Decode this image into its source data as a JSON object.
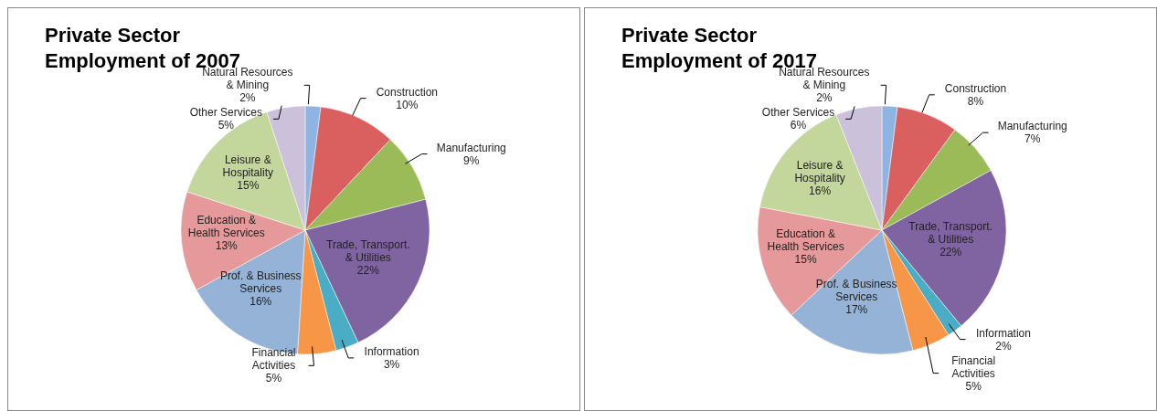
{
  "chart_data": [
    {
      "type": "pie",
      "title": "Private Sector Employment of 2007",
      "categories": [
        "Natural Resources & Mining",
        "Construction",
        "Manufacturing",
        "Trade, Transport. & Utilities",
        "Information",
        "Financial Activities",
        "Prof. & Business Services",
        "Education & Health Services",
        "Leisure & Hospitality",
        "Other Services"
      ],
      "values": [
        2,
        10,
        9,
        22,
        3,
        5,
        16,
        13,
        15,
        5
      ],
      "value_labels": [
        "2%",
        "10%",
        "9%",
        "22%",
        "3%",
        "5%",
        "16%",
        "13%",
        "15%",
        "5%"
      ],
      "colors": [
        "#8eb4e3",
        "#d9605e",
        "#9bbb59",
        "#8064a2",
        "#4bacc6",
        "#f79646",
        "#95b3d7",
        "#e6999a",
        "#c3d69b",
        "#ccc1da"
      ],
      "legend": false
    },
    {
      "type": "pie",
      "title": "Private Sector Employment of 2017",
      "categories": [
        "Natural Resources & Mining",
        "Construction",
        "Manufacturing",
        "Trade, Transport. & Utilities",
        "Information",
        "Financial Activities",
        "Prof. & Business Services",
        "Education & Health Services",
        "Leisure & Hospitality",
        "Other Services"
      ],
      "values": [
        2,
        8,
        7,
        22,
        2,
        5,
        17,
        15,
        16,
        6
      ],
      "value_labels": [
        "2%",
        "8%",
        "7%",
        "22%",
        "2%",
        "5%",
        "17%",
        "15%",
        "16%",
        "6%"
      ],
      "colors": [
        "#8eb4e3",
        "#d9605e",
        "#9bbb59",
        "#8064a2",
        "#4bacc6",
        "#f79646",
        "#95b3d7",
        "#e6999a",
        "#c3d69b",
        "#ccc1da"
      ],
      "legend": false
    }
  ]
}
